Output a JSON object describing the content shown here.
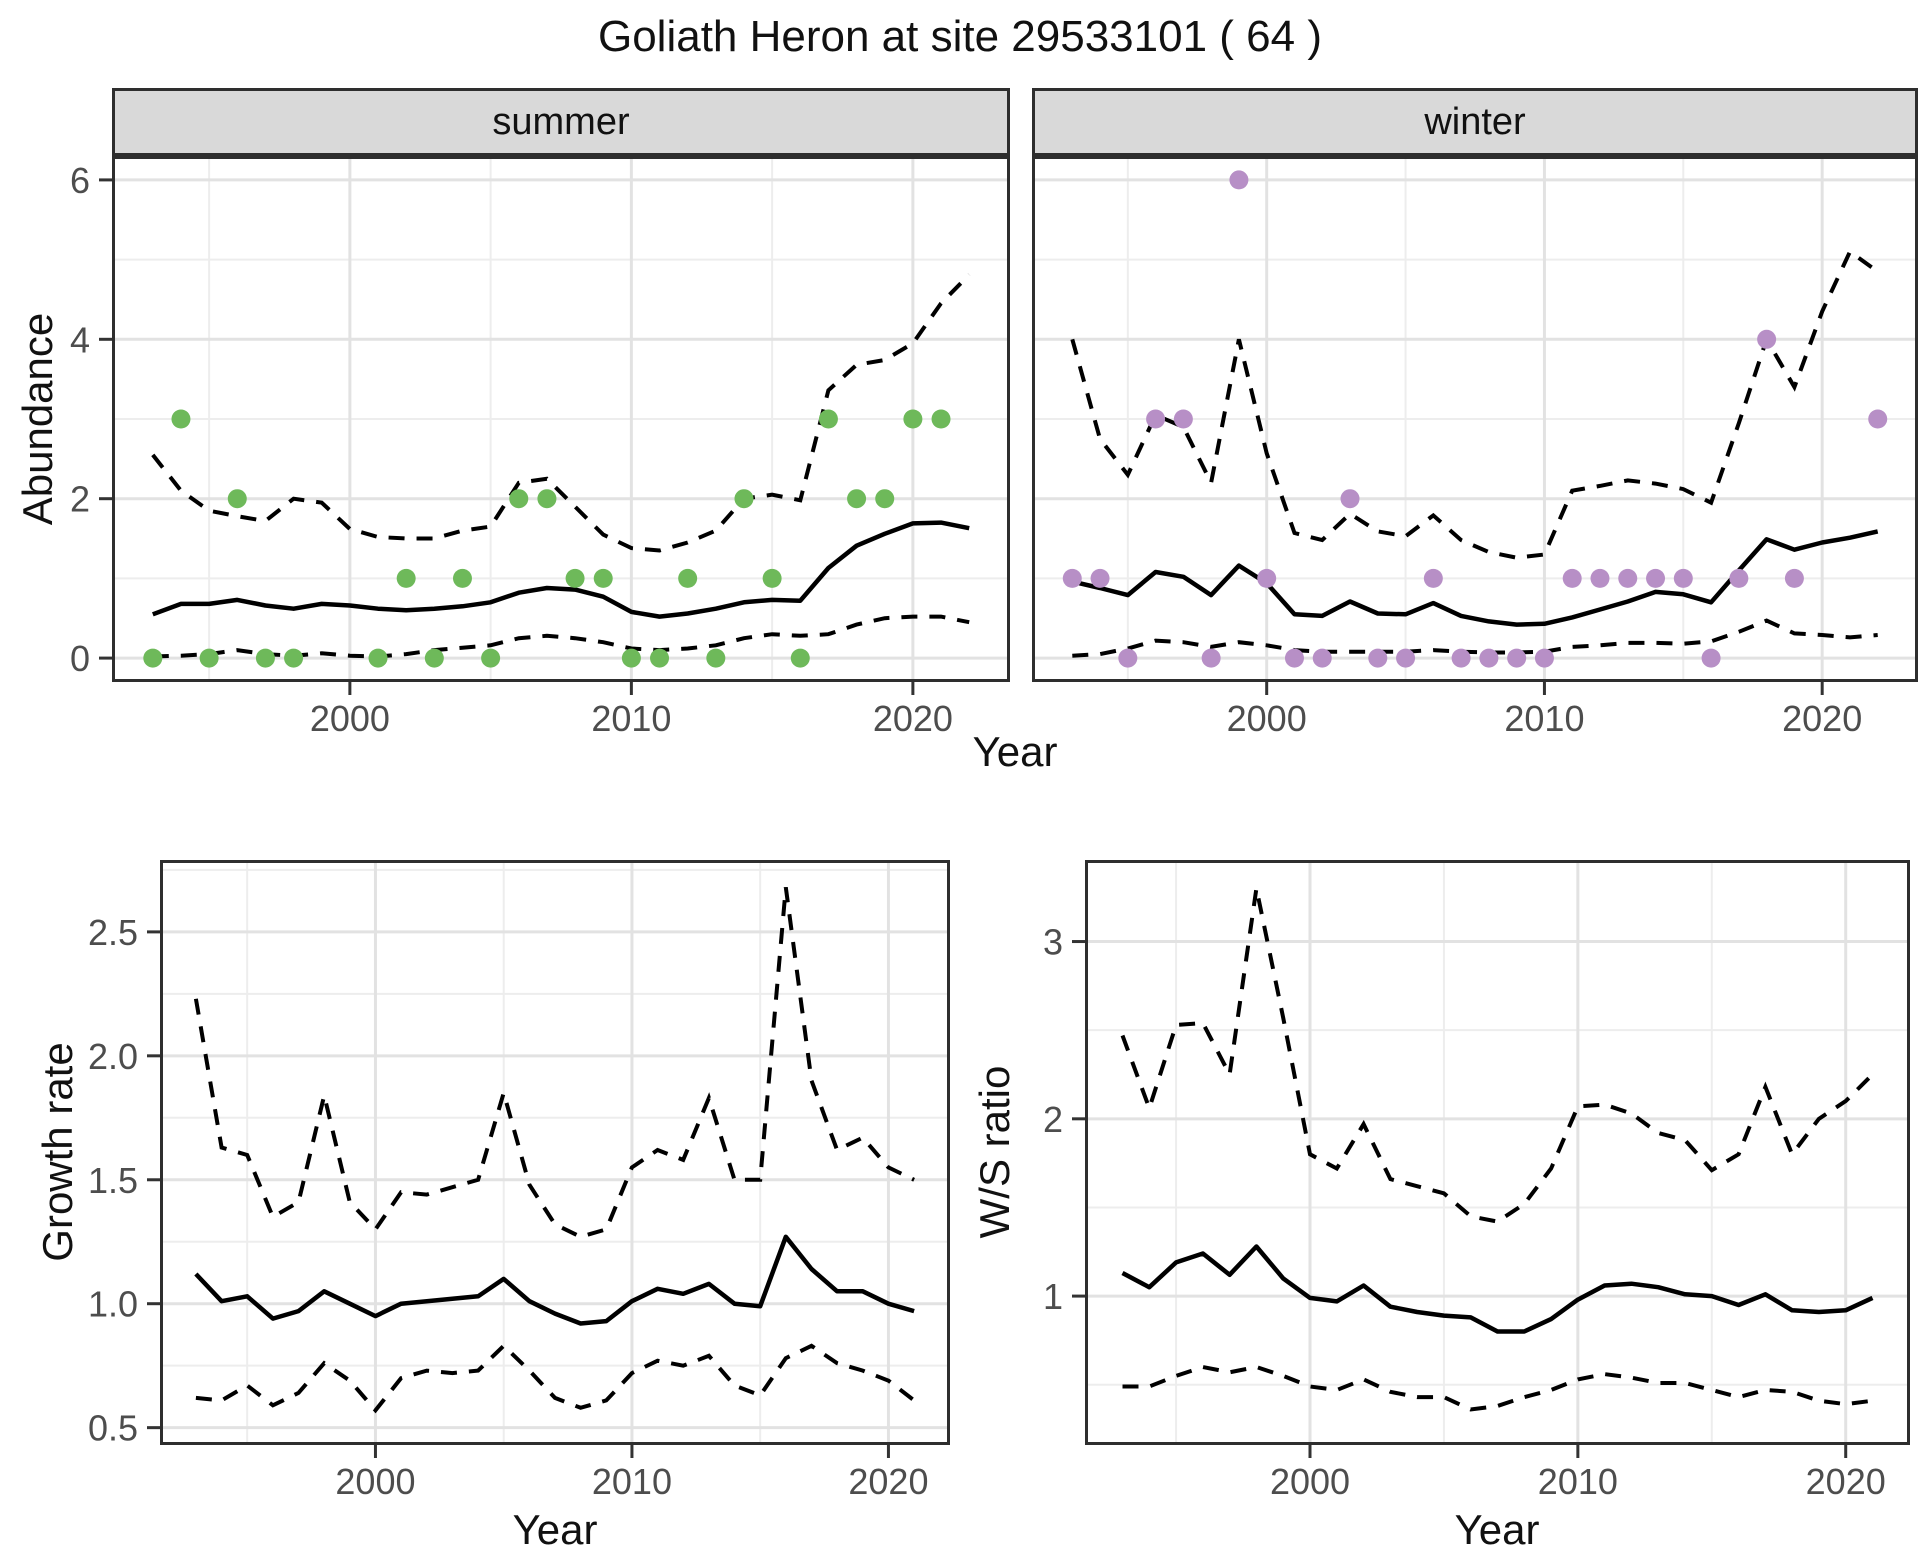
{
  "title": "Goliath Heron at site 29533101 ( 64 )",
  "facets": {
    "summer_label": "summer",
    "winter_label": "winter"
  },
  "axis_titles": {
    "abundance_y": "Abundance",
    "top_x": "Year",
    "growth_y": "Growth rate",
    "growth_x": "Year",
    "ws_y": "W/S ratio",
    "ws_x": "Year"
  },
  "colors": {
    "summer_point": "#6EB95A",
    "winter_point": "#B78FC6",
    "line": "#000000",
    "grid_major": "#E2E2E2",
    "grid_minor": "#EDEDED",
    "strip_bg": "#D9D9D9",
    "panel_border": "#2e2e2e",
    "tick_mark": "#333333",
    "tick_label": "#4D4D4D",
    "background": "#FFFFFF"
  },
  "chart_data": [
    {
      "id": "abundance_summer",
      "type": "line",
      "facet": "summer",
      "title": "Abundance — summer",
      "xlabel": "Year",
      "ylabel": "Abundance",
      "x_range": [
        1991.55,
        2023.45
      ],
      "y_range": [
        -0.3,
        6.3
      ],
      "x_major": [
        2000,
        2010,
        2020
      ],
      "x_minor": [
        1995,
        2005,
        2015
      ],
      "y_major": [
        0,
        2,
        4,
        6
      ],
      "y_minor": [
        1,
        3,
        5
      ],
      "x_labels": [
        "2000",
        "2010",
        "2020"
      ],
      "y_labels": [
        "0",
        "2",
        "4",
        "6"
      ],
      "show_y_axis": true,
      "years": [
        1993,
        1994,
        1995,
        1996,
        1997,
        1998,
        1999,
        2000,
        2001,
        2002,
        2003,
        2004,
        2005,
        2006,
        2007,
        2008,
        2009,
        2010,
        2011,
        2012,
        2013,
        2014,
        2015,
        2016,
        2017,
        2018,
        2019,
        2020,
        2021,
        2022
      ],
      "median": [
        0.55,
        0.68,
        0.68,
        0.73,
        0.66,
        0.62,
        0.68,
        0.66,
        0.62,
        0.6,
        0.62,
        0.65,
        0.7,
        0.82,
        0.88,
        0.86,
        0.77,
        0.58,
        0.52,
        0.56,
        0.62,
        0.7,
        0.73,
        0.72,
        1.13,
        1.41,
        1.56,
        1.69,
        1.7,
        1.63
      ],
      "upper": [
        2.55,
        2.1,
        1.85,
        1.78,
        1.72,
        2.0,
        1.95,
        1.62,
        1.52,
        1.5,
        1.5,
        1.6,
        1.65,
        2.2,
        2.25,
        1.9,
        1.55,
        1.38,
        1.35,
        1.45,
        1.6,
        2.0,
        2.05,
        1.98,
        3.36,
        3.68,
        3.74,
        3.95,
        4.45,
        4.81
      ],
      "lower": [
        0.02,
        0.03,
        0.05,
        0.1,
        0.05,
        0.03,
        0.06,
        0.03,
        0.02,
        0.05,
        0.1,
        0.13,
        0.16,
        0.25,
        0.28,
        0.25,
        0.2,
        0.12,
        0.1,
        0.12,
        0.16,
        0.25,
        0.3,
        0.28,
        0.3,
        0.42,
        0.5,
        0.52,
        0.52,
        0.45
      ],
      "points_years": [
        1993,
        1994,
        1995,
        1996,
        1997,
        1998,
        2001,
        2002,
        2003,
        2004,
        2005,
        2006,
        2007,
        2008,
        2009,
        2010,
        2011,
        2012,
        2013,
        2014,
        2015,
        2016,
        2017,
        2018,
        2019,
        2020,
        2021
      ],
      "points_values": [
        0,
        3,
        0,
        2,
        0,
        0,
        0,
        1,
        0,
        1,
        0,
        2,
        2,
        1,
        1,
        0,
        0,
        1,
        0,
        2,
        1,
        0,
        3,
        2,
        2,
        3,
        3
      ],
      "point_color": "#6EB95A"
    },
    {
      "id": "abundance_winter",
      "type": "line",
      "facet": "winter",
      "title": "Abundance — winter",
      "xlabel": "Year",
      "ylabel": "Abundance",
      "x_range": [
        1991.55,
        2023.45
      ],
      "y_range": [
        -0.3,
        6.3
      ],
      "x_major": [
        2000,
        2010,
        2020
      ],
      "x_minor": [
        1995,
        2005,
        2015
      ],
      "y_major": [
        0,
        2,
        4,
        6
      ],
      "y_minor": [
        1,
        3,
        5
      ],
      "x_labels": [
        "2000",
        "2010",
        "2020"
      ],
      "y_labels": [
        "0",
        "2",
        "4",
        "6"
      ],
      "show_y_axis": false,
      "years": [
        1993,
        1994,
        1995,
        1996,
        1997,
        1998,
        1999,
        2000,
        2001,
        2002,
        2003,
        2004,
        2005,
        2006,
        2007,
        2008,
        2009,
        2010,
        2011,
        2012,
        2013,
        2014,
        2015,
        2016,
        2017,
        2018,
        2019,
        2020,
        2021,
        2022
      ],
      "median": [
        0.96,
        0.88,
        0.79,
        1.08,
        1.02,
        0.79,
        1.16,
        0.94,
        0.55,
        0.53,
        0.71,
        0.56,
        0.55,
        0.69,
        0.53,
        0.46,
        0.42,
        0.43,
        0.51,
        0.61,
        0.71,
        0.83,
        0.8,
        0.7,
        1.1,
        1.49,
        1.36,
        1.45,
        1.51,
        1.59
      ],
      "upper": [
        4.0,
        2.75,
        2.3,
        3.05,
        2.9,
        2.2,
        4.0,
        2.57,
        1.57,
        1.48,
        1.81,
        1.59,
        1.53,
        1.79,
        1.48,
        1.33,
        1.26,
        1.3,
        2.1,
        2.16,
        2.23,
        2.19,
        2.12,
        1.95,
        2.95,
        4.0,
        3.4,
        4.35,
        5.1,
        4.85
      ],
      "lower": [
        0.03,
        0.05,
        0.12,
        0.22,
        0.2,
        0.14,
        0.2,
        0.16,
        0.1,
        0.08,
        0.08,
        0.08,
        0.08,
        0.1,
        0.08,
        0.07,
        0.07,
        0.08,
        0.14,
        0.16,
        0.19,
        0.19,
        0.18,
        0.21,
        0.33,
        0.47,
        0.31,
        0.29,
        0.26,
        0.29
      ],
      "points_years": [
        1993,
        1994,
        1995,
        1996,
        1997,
        1998,
        1999,
        2000,
        2001,
        2002,
        2003,
        2004,
        2005,
        2006,
        2007,
        2008,
        2009,
        2010,
        2011,
        2012,
        2013,
        2014,
        2015,
        2016,
        2017,
        2018,
        2019,
        2022
      ],
      "points_values": [
        1,
        1,
        0,
        3,
        3,
        0,
        6,
        1,
        0,
        0,
        2,
        0,
        0,
        1,
        0,
        0,
        0,
        0,
        1,
        1,
        1,
        1,
        1,
        0,
        1,
        4,
        1,
        3
      ],
      "point_color": "#B78FC6"
    },
    {
      "id": "growth_rate",
      "type": "line",
      "facet": null,
      "title": "Growth rate",
      "xlabel": "Year",
      "ylabel": "Growth rate",
      "x_range": [
        1991.6,
        2022.4
      ],
      "y_range": [
        0.43,
        2.79
      ],
      "x_major": [
        2000,
        2010,
        2020
      ],
      "x_minor": [
        1995,
        2005,
        2015
      ],
      "y_major": [
        0.5,
        1.0,
        1.5,
        2.0,
        2.5
      ],
      "y_minor": [
        0.75,
        1.25,
        1.75,
        2.25,
        2.75
      ],
      "x_labels": [
        "2000",
        "2010",
        "2020"
      ],
      "y_labels": [
        "0.5",
        "1.0",
        "1.5",
        "2.0",
        "2.5"
      ],
      "show_y_axis": true,
      "years": [
        1993,
        1994,
        1995,
        1996,
        1997,
        1998,
        1999,
        2000,
        2001,
        2002,
        2003,
        2004,
        2005,
        2006,
        2007,
        2008,
        2009,
        2010,
        2011,
        2012,
        2013,
        2014,
        2015,
        2016,
        2017,
        2018,
        2019,
        2020,
        2021
      ],
      "median": [
        1.12,
        1.01,
        1.03,
        0.94,
        0.97,
        1.05,
        1.0,
        0.95,
        1.0,
        1.01,
        1.02,
        1.03,
        1.1,
        1.01,
        0.96,
        0.92,
        0.93,
        1.01,
        1.06,
        1.04,
        1.08,
        1.0,
        0.99,
        1.27,
        1.14,
        1.05,
        1.05,
        1.0,
        0.97
      ],
      "upper": [
        2.23,
        1.63,
        1.6,
        1.35,
        1.41,
        1.84,
        1.41,
        1.3,
        1.45,
        1.44,
        1.47,
        1.5,
        1.85,
        1.48,
        1.32,
        1.27,
        1.3,
        1.55,
        1.62,
        1.58,
        1.83,
        1.5,
        1.5,
        2.68,
        1.9,
        1.62,
        1.67,
        1.55,
        1.5
      ],
      "lower": [
        0.62,
        0.61,
        0.67,
        0.59,
        0.64,
        0.76,
        0.69,
        0.57,
        0.7,
        0.73,
        0.72,
        0.73,
        0.83,
        0.73,
        0.62,
        0.58,
        0.61,
        0.72,
        0.77,
        0.75,
        0.79,
        0.67,
        0.63,
        0.78,
        0.83,
        0.76,
        0.73,
        0.69,
        0.61
      ],
      "points_years": [],
      "points_values": [],
      "point_color": "#000000"
    },
    {
      "id": "ws_ratio",
      "type": "line",
      "facet": null,
      "title": "W/S ratio",
      "xlabel": "Year",
      "ylabel": "W/S ratio",
      "x_range": [
        1991.6,
        2022.4
      ],
      "y_range": [
        0.16,
        3.46
      ],
      "x_major": [
        2000,
        2010,
        2020
      ],
      "x_minor": [
        1995,
        2005,
        2015
      ],
      "y_major": [
        1,
        2,
        3
      ],
      "y_minor": [
        0.5,
        1.5,
        2.5
      ],
      "x_labels": [
        "2000",
        "2010",
        "2020"
      ],
      "y_labels": [
        "1",
        "2",
        "3"
      ],
      "show_y_axis": true,
      "years": [
        1993,
        1994,
        1995,
        1996,
        1997,
        1998,
        1999,
        2000,
        2001,
        2002,
        2003,
        2004,
        2005,
        2006,
        2007,
        2008,
        2009,
        2010,
        2011,
        2012,
        2013,
        2014,
        2015,
        2016,
        2017,
        2018,
        2019,
        2020,
        2021
      ],
      "median": [
        1.13,
        1.05,
        1.19,
        1.24,
        1.12,
        1.28,
        1.1,
        0.99,
        0.97,
        1.06,
        0.94,
        0.91,
        0.89,
        0.88,
        0.8,
        0.8,
        0.87,
        0.98,
        1.06,
        1.07,
        1.05,
        1.01,
        1.0,
        0.95,
        1.01,
        0.92,
        0.91,
        0.92,
        0.99
      ],
      "upper": [
        2.47,
        2.06,
        2.53,
        2.54,
        2.25,
        3.3,
        2.57,
        1.8,
        1.72,
        1.97,
        1.66,
        1.62,
        1.58,
        1.45,
        1.42,
        1.52,
        1.72,
        2.07,
        2.08,
        2.03,
        1.92,
        1.88,
        1.71,
        1.8,
        2.18,
        1.8,
        2.0,
        2.1,
        2.25
      ],
      "lower": [
        0.49,
        0.49,
        0.55,
        0.6,
        0.57,
        0.6,
        0.55,
        0.49,
        0.47,
        0.53,
        0.46,
        0.43,
        0.43,
        0.36,
        0.38,
        0.43,
        0.47,
        0.53,
        0.56,
        0.54,
        0.51,
        0.51,
        0.47,
        0.43,
        0.47,
        0.46,
        0.41,
        0.39,
        0.41
      ],
      "points_years": [],
      "points_values": [],
      "point_color": "#000000"
    }
  ]
}
